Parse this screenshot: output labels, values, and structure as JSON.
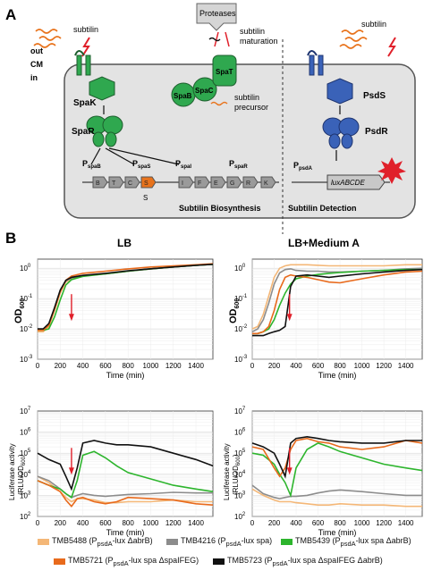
{
  "panelA": {
    "label": "A",
    "subtilin_left": "subtilin",
    "proteases": "Proteases",
    "subtilin_maturation": "subtilin\nmaturation",
    "subtilin_right": "subtilin",
    "out": "out",
    "cm": "CM",
    "in": "in",
    "spaK": "SpaK",
    "spaB": "SpaB",
    "spaC": "SpaC",
    "spaT": "SpaT",
    "spaR": "SpaR",
    "precursor": "subtilin\nprecursor",
    "psdS": "PsdS",
    "psdR": "PsdR",
    "promoters": [
      "P",
      "P",
      "P",
      "P"
    ],
    "promoter_subs": [
      "spaB",
      "spaS",
      "spaI",
      "spaR"
    ],
    "genes": [
      "B",
      "T",
      "C",
      "S",
      "I",
      "F",
      "E",
      "G",
      "R",
      "K"
    ],
    "s_label": "S",
    "biosynthesis": "Subtilin Biosynthesis",
    "psda": "P",
    "psda_sub": "psdA",
    "lux": "luxABCDE",
    "detection": "Subtilin Detection"
  },
  "panelB": {
    "label": "B",
    "title_left": "LB",
    "title_right": "LB+Medium A",
    "od_label": "OD",
    "od_sub": "600",
    "lum_label_line1": "Luciferase activity",
    "lum_label_line2": "(RLU/OD",
    "lum_label_sub": "600",
    "lum_label_close": ")",
    "xlabel": "Time (min)",
    "x_ticks": [
      "0",
      "200",
      "400",
      "600",
      "800",
      "1000",
      "1200",
      "1400"
    ],
    "od_ticks": [
      "10",
      "10",
      "10",
      "10",
      "10"
    ],
    "od_exps": [
      "0",
      "-1",
      "-2",
      "-3",
      ""
    ],
    "lum_ticks": [
      "10",
      "10",
      "10",
      "10",
      "10",
      "10"
    ],
    "lum_exps": [
      "7",
      "6",
      "5",
      "4",
      "3",
      "2"
    ]
  },
  "colors": {
    "TMB5488": "#f4b777",
    "TMB4216": "#8c8c8c",
    "TMB5439": "#2db52d",
    "TMB5721": "#e86a1c",
    "TMB5723": "#111111",
    "spa_green": "#2fa84f",
    "psd_blue": "#3a62b8",
    "arrow_red": "#e0202a"
  },
  "chart_data": [
    {
      "type": "line",
      "title": "LB",
      "xlabel": "Time (min)",
      "ylabel": "OD600",
      "yscale": "log",
      "xlim": [
        0,
        1550
      ],
      "ylim": [
        0.001,
        2
      ],
      "annotation": {
        "red_arrow_x": 300
      },
      "x": [
        0,
        50,
        100,
        150,
        200,
        250,
        300,
        400,
        600,
        800,
        1000,
        1200,
        1400,
        1550
      ],
      "series": [
        {
          "name": "TMB5488",
          "values": [
            0.008,
            0.008,
            0.012,
            0.04,
            0.15,
            0.35,
            0.45,
            0.55,
            0.65,
            0.8,
            0.95,
            1.1,
            1.25,
            1.35
          ]
        },
        {
          "name": "TMB4216",
          "values": [
            0.009,
            0.009,
            0.014,
            0.05,
            0.18,
            0.38,
            0.48,
            0.56,
            0.66,
            0.8,
            0.95,
            1.1,
            1.25,
            1.35
          ]
        },
        {
          "name": "TMB5439",
          "values": [
            0.009,
            0.009,
            0.01,
            0.025,
            0.09,
            0.28,
            0.42,
            0.54,
            0.65,
            0.8,
            0.95,
            1.1,
            1.25,
            1.35
          ]
        },
        {
          "name": "TMB5721",
          "values": [
            0.009,
            0.009,
            0.013,
            0.045,
            0.17,
            0.4,
            0.55,
            0.68,
            0.8,
            0.95,
            1.1,
            1.2,
            1.3,
            1.4
          ]
        },
        {
          "name": "TMB5723",
          "values": [
            0.01,
            0.01,
            0.015,
            0.05,
            0.19,
            0.4,
            0.5,
            0.58,
            0.68,
            0.82,
            0.96,
            1.1,
            1.25,
            1.35
          ]
        }
      ]
    },
    {
      "type": "line",
      "title": "LB+Medium A",
      "xlabel": "Time (min)",
      "ylabel": "OD600",
      "yscale": "log",
      "xlim": [
        0,
        1550
      ],
      "ylim": [
        0.001,
        2
      ],
      "annotation": {
        "red_arrow_x": 340
      },
      "x": [
        0,
        50,
        100,
        150,
        200,
        250,
        300,
        350,
        400,
        500,
        600,
        700,
        800,
        1000,
        1200,
        1400,
        1550
      ],
      "series": [
        {
          "name": "TMB5488",
          "values": [
            0.01,
            0.012,
            0.03,
            0.12,
            0.5,
            1.0,
            1.2,
            1.3,
            1.3,
            1.3,
            1.25,
            1.2,
            1.2,
            1.2,
            1.2,
            1.3,
            1.3
          ]
        },
        {
          "name": "TMB4216",
          "values": [
            0.008,
            0.01,
            0.02,
            0.07,
            0.3,
            0.7,
            0.9,
            0.95,
            0.85,
            0.8,
            0.8,
            0.75,
            0.75,
            0.8,
            0.85,
            0.95,
            1.0
          ]
        },
        {
          "name": "TMB5439",
          "values": [
            0.007,
            0.007,
            0.008,
            0.01,
            0.02,
            0.06,
            0.15,
            0.3,
            0.45,
            0.55,
            0.62,
            0.68,
            0.72,
            0.8,
            0.85,
            0.9,
            0.9
          ]
        },
        {
          "name": "TMB5721",
          "values": [
            0.007,
            0.007,
            0.008,
            0.012,
            0.04,
            0.2,
            0.5,
            0.6,
            0.55,
            0.5,
            0.42,
            0.35,
            0.33,
            0.45,
            0.6,
            0.75,
            0.8
          ]
        },
        {
          "name": "TMB5723",
          "values": [
            0.006,
            0.006,
            0.006,
            0.007,
            0.008,
            0.009,
            0.012,
            0.25,
            0.55,
            0.6,
            0.55,
            0.5,
            0.55,
            0.65,
            0.75,
            0.85,
            0.9
          ]
        }
      ]
    },
    {
      "type": "line",
      "title": "",
      "xlabel": "Time (min)",
      "ylabel": "Luciferase activity (RLU/OD600)",
      "yscale": "log",
      "xlim": [
        0,
        1550
      ],
      "ylim": [
        100,
        10000000
      ],
      "annotation": {
        "red_arrow_x": 300
      },
      "x": [
        0,
        100,
        200,
        250,
        300,
        350,
        400,
        500,
        600,
        700,
        800,
        1000,
        1200,
        1400,
        1550
      ],
      "series": [
        {
          "name": "TMB5488",
          "values": [
            8000,
            4000,
            1500,
            800,
            500,
            700,
            700,
            600,
            450,
            450,
            500,
            500,
            600,
            500,
            500
          ]
        },
        {
          "name": "TMB4216",
          "values": [
            8000,
            5000,
            2000,
            1200,
            800,
            1000,
            1200,
            1000,
            900,
            1000,
            1100,
            1200,
            1400,
            1300,
            1300
          ]
        },
        {
          "name": "TMB5439",
          "values": [
            5000,
            3000,
            2000,
            1200,
            800,
            5000,
            80000,
            120000,
            60000,
            25000,
            12000,
            6000,
            3000,
            2000,
            1500
          ]
        },
        {
          "name": "TMB5721",
          "values": [
            5000,
            3000,
            1500,
            600,
            300,
            700,
            800,
            500,
            400,
            500,
            800,
            700,
            600,
            400,
            350
          ]
        },
        {
          "name": "TMB5723",
          "values": [
            100000,
            50000,
            30000,
            8000,
            2000,
            20000,
            300000,
            400000,
            300000,
            250000,
            250000,
            200000,
            100000,
            50000,
            25000
          ]
        }
      ]
    },
    {
      "type": "line",
      "title": "",
      "xlabel": "Time (min)",
      "ylabel": "Luciferase activity (RLU/OD600)",
      "yscale": "log",
      "xlim": [
        0,
        1550
      ],
      "ylim": [
        100,
        10000000
      ],
      "annotation": {
        "red_arrow_x": 340
      },
      "x": [
        0,
        100,
        200,
        250,
        300,
        350,
        400,
        500,
        600,
        700,
        800,
        1000,
        1200,
        1400,
        1550
      ],
      "series": [
        {
          "name": "TMB5488",
          "values": [
            2000,
            1000,
            600,
            500,
            500,
            500,
            450,
            400,
            350,
            350,
            400,
            350,
            350,
            300,
            300
          ]
        },
        {
          "name": "TMB4216",
          "values": [
            3000,
            1200,
            800,
            700,
            800,
            900,
            900,
            1000,
            1300,
            1600,
            1800,
            1500,
            1200,
            1000,
            1000
          ]
        },
        {
          "name": "TMB5439",
          "values": [
            100000,
            80000,
            30000,
            10000,
            4000,
            1000,
            20000,
            150000,
            300000,
            200000,
            120000,
            60000,
            30000,
            20000,
            15000
          ]
        },
        {
          "name": "TMB5721",
          "values": [
            200000,
            150000,
            20000,
            8000,
            20000,
            150000,
            400000,
            500000,
            350000,
            300000,
            200000,
            150000,
            200000,
            400000,
            300000
          ]
        },
        {
          "name": "TMB5723",
          "values": [
            300000,
            200000,
            100000,
            30000,
            8000,
            300000,
            500000,
            600000,
            500000,
            400000,
            350000,
            300000,
            300000,
            400000,
            400000
          ]
        }
      ]
    }
  ],
  "legend": [
    {
      "id": "TMB5488",
      "text": "TMB5488 (P",
      "sub": "psdA",
      "rest": "-lux ΔabrB)"
    },
    {
      "id": "TMB4216",
      "text": "TMB4216 (P",
      "sub": "psdA",
      "rest": "-lux spa)"
    },
    {
      "id": "TMB5439",
      "text": "TMB5439 (P",
      "sub": "psdA",
      "rest": "-lux spa ΔabrB)"
    },
    {
      "id": "TMB5721",
      "text": "TMB5721 (P",
      "sub": "psdA",
      "rest": "-lux spa ΔspaIFEG)"
    },
    {
      "id": "TMB5723",
      "text": "TMB5723 (P",
      "sub": "psdA",
      "rest": "-lux spa ΔspaIFEG ΔabrB)"
    }
  ]
}
